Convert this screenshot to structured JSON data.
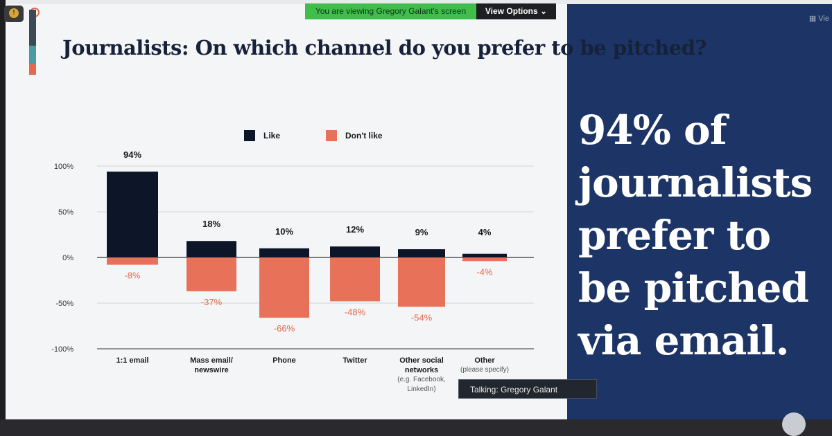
{
  "zoom_banner": {
    "viewing_text": "You are viewing Gregory Galant's screen",
    "options_label": "View Options"
  },
  "top_right_label": "Vie",
  "slide": {
    "title_main": "Journalists: On which channel do you prefer to be pitched?",
    "big_text": "94% of journalists prefer to be pitched via email."
  },
  "talking_indicator": "Talking: Gregory Galant",
  "colors": {
    "like": "#0c1628",
    "dislike": "#e8715a",
    "panel": "#1d3566",
    "banner_green": "#3fbe4c"
  },
  "chart_data": {
    "type": "bar",
    "legend": [
      "Like",
      "Don't like"
    ],
    "categories": [
      {
        "label": "1:1 email",
        "sub": ""
      },
      {
        "label": "Mass email/ newswire",
        "sub": ""
      },
      {
        "label": "Phone",
        "sub": ""
      },
      {
        "label": "Twitter",
        "sub": ""
      },
      {
        "label": "Other social networks",
        "sub": "(e.g. Facebook, LinkedIn)"
      },
      {
        "label": "Other",
        "sub": "(please specify)"
      }
    ],
    "series": [
      {
        "name": "Like",
        "values": [
          94,
          18,
          10,
          12,
          9,
          4
        ]
      },
      {
        "name": "Don't like",
        "values": [
          -8,
          -37,
          -66,
          -48,
          -54,
          -4
        ]
      }
    ],
    "value_labels_like": [
      "94%",
      "18%",
      "10%",
      "12%",
      "9%",
      "4%"
    ],
    "value_labels_dislike": [
      "-8%",
      "-37%",
      "-66%",
      "-48%",
      "-54%",
      "-4%"
    ],
    "yticks": [
      "100%",
      "50%",
      "0%",
      "-50%",
      "-100%"
    ],
    "ylim": [
      -100,
      100
    ],
    "grid": true,
    "legend_position": "top"
  }
}
